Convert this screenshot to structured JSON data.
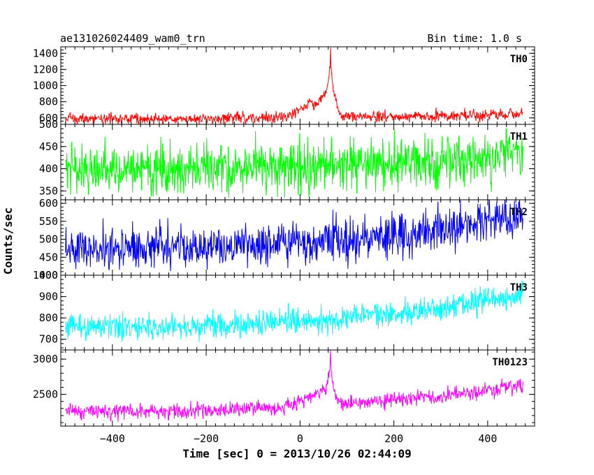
{
  "header": {
    "left_title": "ae131026024409_wam0_trn",
    "right_title": "Bin time: 1.0 s"
  },
  "axes": {
    "ylabel": "Counts/sec",
    "xlabel": "Time [sec] 0 = 2013/10/26 02:44:09"
  },
  "chart_data": {
    "type": "line",
    "bin_time_s": 1.0,
    "x_range": [
      -510,
      500
    ],
    "x_ticks": [
      -400,
      -200,
      0,
      200,
      400
    ],
    "x_tick_labels": [
      "−400",
      "−200",
      "0",
      "200",
      "400"
    ],
    "data_x_start": -500,
    "data_x_end": 475,
    "panels": [
      {
        "name": "TH0",
        "color": "#ff0000",
        "ylim": [
          520,
          1480
        ],
        "yticks": [
          600,
          800,
          1000,
          1200,
          1400
        ],
        "noise": 35,
        "samples": [
          [
            -500,
            590
          ],
          [
            -300,
            585
          ],
          [
            -100,
            600
          ],
          [
            -40,
            600
          ],
          [
            -15,
            640
          ],
          [
            0,
            700
          ],
          [
            15,
            760
          ],
          [
            30,
            780
          ],
          [
            40,
            800
          ],
          [
            50,
            870
          ],
          [
            55,
            920
          ],
          [
            60,
            1000
          ],
          [
            65,
            1300
          ],
          [
            70,
            980
          ],
          [
            75,
            850
          ],
          [
            80,
            700
          ],
          [
            90,
            620
          ],
          [
            120,
            605
          ],
          [
            300,
            620
          ],
          [
            475,
            650
          ]
        ],
        "peak": [
          65,
          1470
        ]
      },
      {
        "name": "TH1",
        "color": "#00ff00",
        "ylim": [
          330,
          500
        ],
        "yticks": [
          350,
          400,
          450,
          500
        ],
        "noise": 28,
        "samples": [
          [
            -500,
            395
          ],
          [
            -300,
            398
          ],
          [
            -100,
            402
          ],
          [
            100,
            410
          ],
          [
            300,
            420
          ],
          [
            475,
            432
          ]
        ]
      },
      {
        "name": "TH2",
        "color": "#0000ff",
        "ylim": [
          400,
          610
        ],
        "yticks": [
          400,
          450,
          500,
          550,
          600
        ],
        "noise": 30,
        "samples": [
          [
            -500,
            478
          ],
          [
            -300,
            478
          ],
          [
            -100,
            482
          ],
          [
            100,
            495
          ],
          [
            250,
            510
          ],
          [
            350,
            535
          ],
          [
            475,
            570
          ]
        ]
      },
      {
        "name": "TH3",
        "color": "#00ffff",
        "ylim": [
          650,
          1000
        ],
        "yticks": [
          700,
          800,
          900,
          1000
        ],
        "noise": 30,
        "samples": [
          [
            -500,
            760
          ],
          [
            -300,
            755
          ],
          [
            -100,
            768
          ],
          [
            0,
            790
          ],
          [
            100,
            800
          ],
          [
            300,
            840
          ],
          [
            475,
            920
          ]
        ]
      },
      {
        "name": "TH0123",
        "color": "#ff00ff",
        "ylim": [
          2050,
          3130
        ],
        "yticks": [
          2500,
          3000
        ],
        "noise": 55,
        "samples": [
          [
            -500,
            2260
          ],
          [
            -300,
            2250
          ],
          [
            -100,
            2300
          ],
          [
            -40,
            2310
          ],
          [
            0,
            2390
          ],
          [
            20,
            2460
          ],
          [
            40,
            2510
          ],
          [
            55,
            2600
          ],
          [
            60,
            2700
          ],
          [
            65,
            2900
          ],
          [
            70,
            2620
          ],
          [
            80,
            2420
          ],
          [
            100,
            2370
          ],
          [
            200,
            2420
          ],
          [
            300,
            2470
          ],
          [
            475,
            2620
          ]
        ],
        "peak": [
          65,
          3130
        ]
      }
    ]
  }
}
